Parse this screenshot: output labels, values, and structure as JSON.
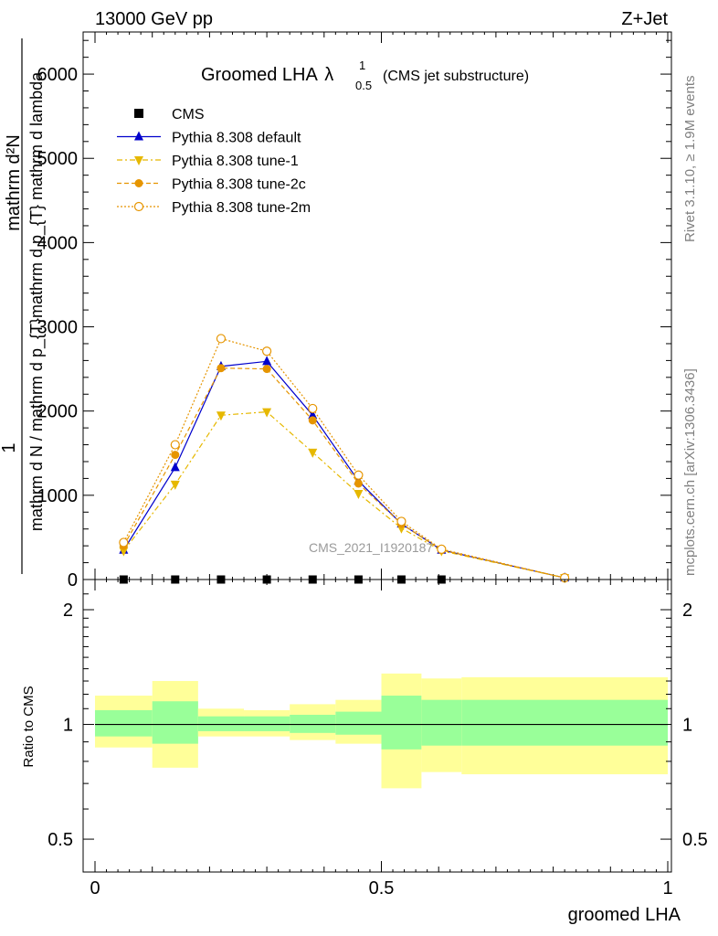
{
  "header": {
    "left": "13000 GeV pp",
    "right": "Z+Jet"
  },
  "side_labels": {
    "rivet": "Rivet 3.1.10, ≥ 1.9M events",
    "mcplots": "mcplots.cern.ch [arXiv:1306.3436]"
  },
  "title": {
    "main": "Groomed LHA",
    "symbol": "λ",
    "superscript": "1",
    "subscript": "0.5",
    "note": "(CMS jet substructure)"
  },
  "watermark": "CMS_2021_I1920187",
  "y_axis_label": {
    "numerator_left": "1",
    "numerator_right": "mathrm d²N",
    "denominator": "mathrm d N / mathrm d p_{T}mathrm d p_{T} mathrm d lambda"
  },
  "ratio_ylabel": "Ratio to CMS",
  "xlabel": "groomed LHA",
  "legend": [
    {
      "label": "CMS",
      "color": "#000000",
      "marker": "square"
    },
    {
      "label": "Pythia 8.308 default",
      "color": "#0000cc",
      "marker": "triangle-up"
    },
    {
      "label": "Pythia 8.308 tune-1",
      "color": "#e6b800",
      "marker": "triangle-down"
    },
    {
      "label": "Pythia 8.308 tune-2c",
      "color": "#e69500",
      "marker": "circle"
    },
    {
      "label": "Pythia 8.308 tune-2m",
      "color": "#e69500",
      "marker": "open-circle"
    }
  ],
  "chart_data": {
    "type": "line",
    "main_panel": {
      "xlim": [
        -0.02,
        1.02
      ],
      "ylim": [
        0,
        6500
      ],
      "y_ticks": [
        0,
        1000,
        2000,
        3000,
        4000,
        5000,
        6000
      ],
      "y_tick_labels": [
        "0",
        "1000",
        "2000",
        "3000",
        "4000",
        "5000",
        "6000"
      ],
      "x_ticks": [
        0,
        0.5,
        1
      ],
      "x_tick_labels": [
        "0",
        "0.5",
        "1"
      ],
      "x": [
        0.05,
        0.14,
        0.22,
        0.3,
        0.38,
        0.46,
        0.535,
        0.605,
        0.82
      ],
      "series": [
        {
          "name": "CMS",
          "values": [
            0,
            0,
            0,
            0,
            0,
            0,
            0,
            0,
            null
          ]
        },
        {
          "name": "Pythia 8.308 default",
          "values": [
            350,
            1330,
            2530,
            2590,
            1950,
            1170,
            660,
            350,
            20
          ]
        },
        {
          "name": "Pythia 8.308 tune-1",
          "values": [
            340,
            1130,
            1950,
            1990,
            1510,
            1020,
            610,
            340,
            20
          ]
        },
        {
          "name": "Pythia 8.308 tune-2c",
          "values": [
            400,
            1480,
            2510,
            2500,
            1890,
            1140,
            660,
            350,
            20
          ]
        },
        {
          "name": "Pythia 8.308 tune-2m",
          "values": [
            440,
            1600,
            2860,
            2710,
            2030,
            1240,
            690,
            360,
            20
          ]
        }
      ]
    },
    "ratio_panel": {
      "ylim": [
        0.41,
        2.4
      ],
      "log_scale": true,
      "y_ticks": [
        0.5,
        1,
        2
      ],
      "y_tick_labels": [
        "0.5",
        "1",
        "2"
      ],
      "reference": 1,
      "bin_edges": [
        0,
        0.1,
        0.18,
        0.26,
        0.34,
        0.42,
        0.5,
        0.57,
        0.64,
        1.0
      ],
      "inner_band": [
        [
          0.93,
          1.09
        ],
        [
          0.89,
          1.15
        ],
        [
          0.96,
          1.05
        ],
        [
          0.96,
          1.05
        ],
        [
          0.95,
          1.06
        ],
        [
          0.94,
          1.08
        ],
        [
          0.86,
          1.19
        ],
        [
          0.88,
          1.16
        ],
        [
          0.88,
          1.16
        ]
      ],
      "outer_band": [
        [
          0.87,
          1.19
        ],
        [
          0.77,
          1.3
        ],
        [
          0.93,
          1.1
        ],
        [
          0.93,
          1.09
        ],
        [
          0.91,
          1.13
        ],
        [
          0.89,
          1.16
        ],
        [
          0.68,
          1.36
        ],
        [
          0.75,
          1.32
        ],
        [
          0.74,
          1.33
        ]
      ]
    }
  }
}
